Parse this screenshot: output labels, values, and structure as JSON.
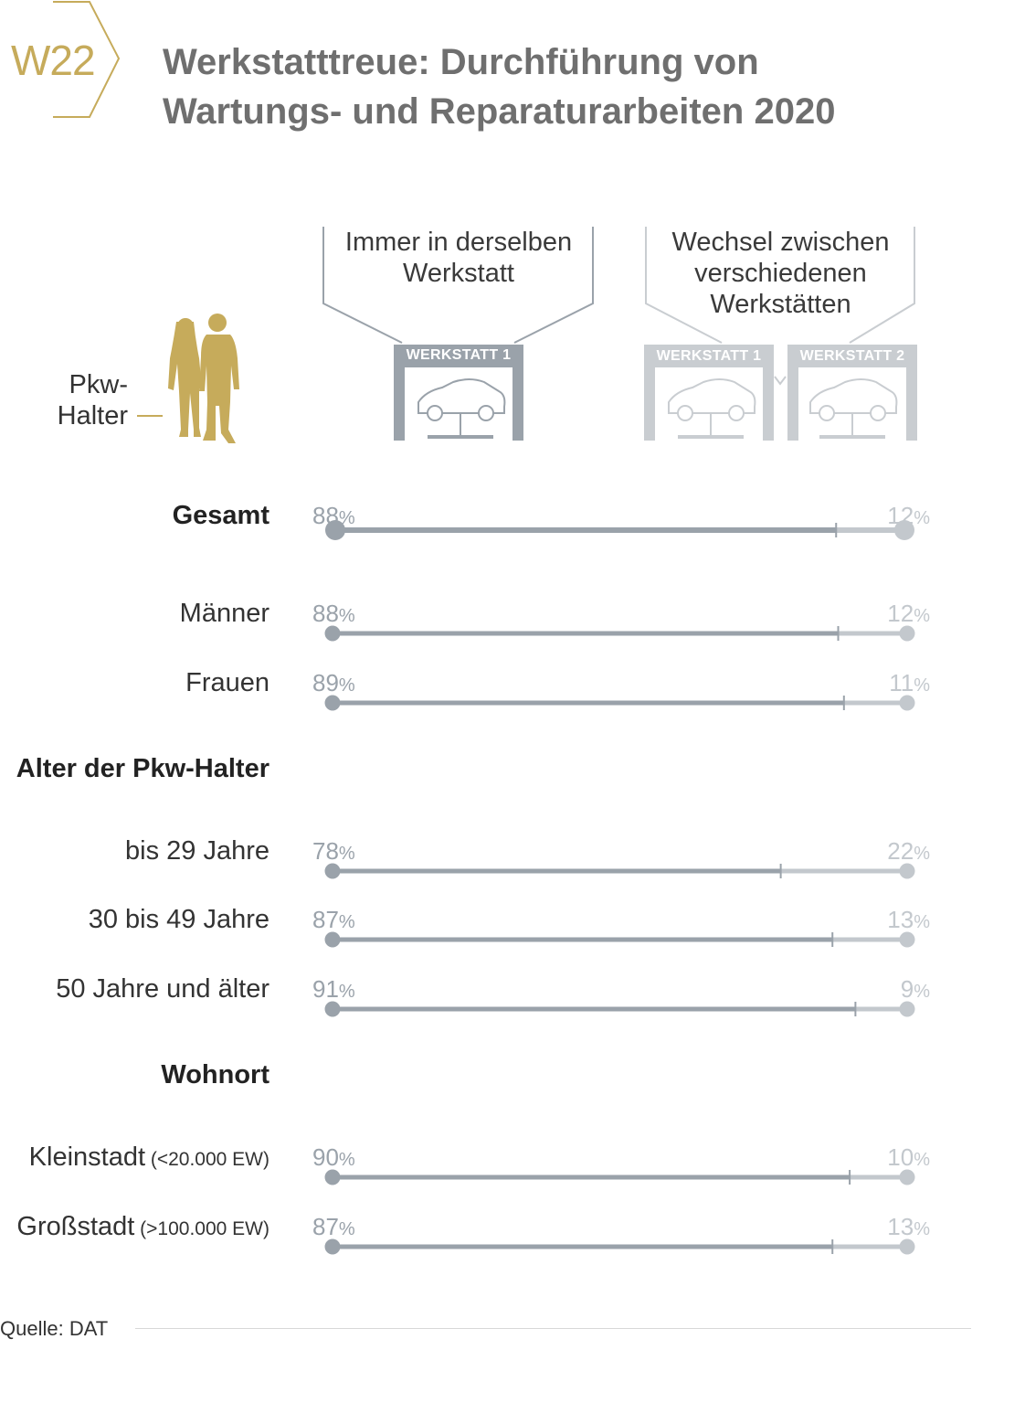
{
  "header": {
    "badge": "W22",
    "title_line1": "Werkstatttreue: Durchführung von",
    "title_line2": "Wartungs- und Reparaturarbeiten 2020"
  },
  "legend": {
    "left_heading": [
      "Immer in derselben",
      "Werkstatt"
    ],
    "right_heading": [
      "Wechsel zwischen",
      "verschiedenen",
      "Werkstätten"
    ],
    "left_garage": "WERKSTATT 1",
    "right_garage_1": "WERKSTATT 1",
    "right_garage_2": "WERKSTATT 2",
    "pkw_label_line1": "Pkw-",
    "pkw_label_line2": "Halter"
  },
  "colors": {
    "accent_gold": "#c6ab5b",
    "same_workshop": "#9aa2aa",
    "switching": "#c3c8cd",
    "title_gray": "#6f6f6f"
  },
  "chart_data": {
    "type": "bar",
    "orientation": "horizontal-stacked",
    "unit": "%",
    "series_names": [
      "Immer in derselben Werkstatt",
      "Wechsel zwischen verschiedenen Werkstätten"
    ],
    "sections": [
      {
        "heading": "",
        "rows": [
          {
            "label": "Gesamt",
            "emphasis": true,
            "same": 88,
            "switch": 12
          }
        ]
      },
      {
        "heading": "",
        "rows": [
          {
            "label": "Männer",
            "same": 88,
            "switch": 12
          },
          {
            "label": "Frauen",
            "same": 89,
            "switch": 11
          }
        ]
      },
      {
        "heading": "Alter der Pkw-Halter",
        "rows": [
          {
            "label": "bis 29 Jahre",
            "same": 78,
            "switch": 22
          },
          {
            "label": "30 bis 49 Jahre",
            "same": 87,
            "switch": 13
          },
          {
            "label": "50 Jahre und älter",
            "same": 91,
            "switch": 9
          }
        ]
      },
      {
        "heading": "Wohnort",
        "rows": [
          {
            "label": "Kleinstadt",
            "note": "(<20.000 EW)",
            "same": 90,
            "switch": 10
          },
          {
            "label": "Großstadt",
            "note": "(>100.000 EW)",
            "same": 87,
            "switch": 13
          }
        ]
      }
    ],
    "percent_symbol": "%"
  },
  "footer": {
    "source": "Quelle: DAT"
  }
}
